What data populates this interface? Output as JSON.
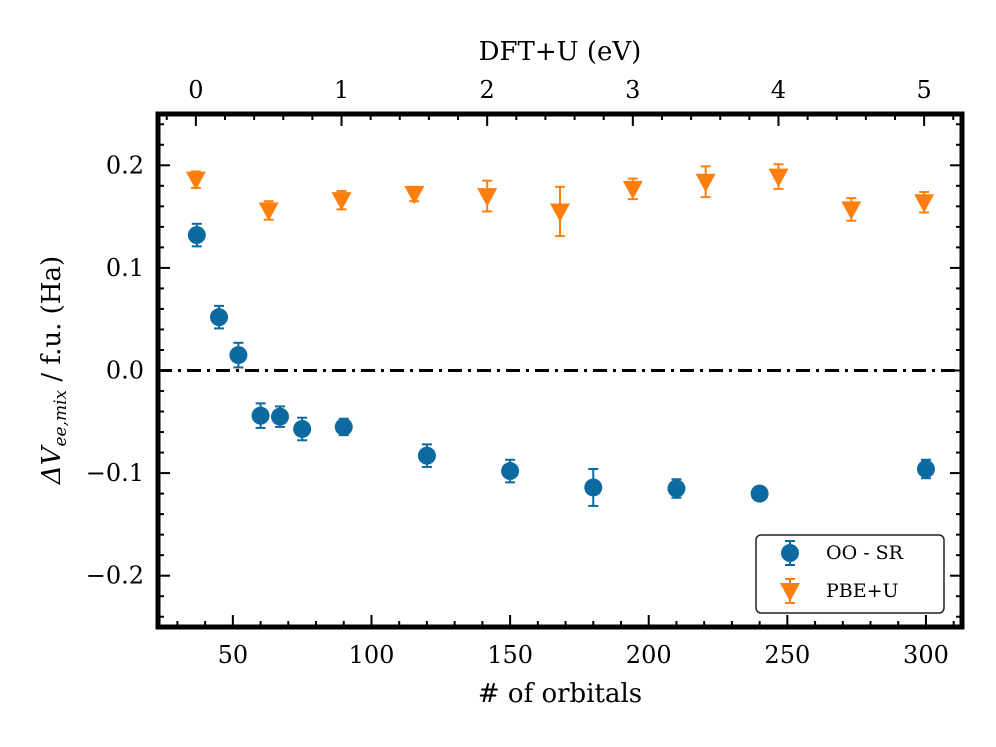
{
  "chart_data": {
    "type": "scatter",
    "ylabel_main": "ΔV",
    "ylabel_sub": "ee,mix",
    "ylabel_rest": " / f.u. (Ha)",
    "xlabel": "# of orbitals",
    "xlabel_top": "DFT+U (eV)",
    "xlim": [
      23,
      313
    ],
    "ylim": [
      -0.25,
      0.25
    ],
    "xlim_top": [
      -0.26,
      5.26
    ],
    "xticks": [
      50,
      100,
      150,
      200,
      250,
      300
    ],
    "xtick_labels": [
      "50",
      "100",
      "150",
      "200",
      "250",
      "300"
    ],
    "yticks": [
      -0.2,
      -0.1,
      0.0,
      0.1,
      0.2
    ],
    "ytick_labels": [
      "−0.2",
      "−0.1",
      "0.0",
      "0.1",
      "0.2"
    ],
    "xticks_top": [
      0,
      1,
      2,
      3,
      4,
      5
    ],
    "xtick_labels_top": [
      "0",
      "1",
      "2",
      "3",
      "4",
      "5"
    ],
    "reference_line": {
      "y": 0.0,
      "style": "dash-dot",
      "color": "#000000"
    },
    "legend_position": "bottom-right",
    "series": [
      {
        "name": "OO - SR",
        "marker": "circle",
        "color": "#0c6aa0",
        "axis": "bottom",
        "x": [
          37,
          45,
          52,
          60,
          67,
          75,
          90,
          120,
          150,
          180,
          210,
          240,
          300
        ],
        "y": [
          0.132,
          0.052,
          0.015,
          -0.044,
          -0.045,
          -0.057,
          -0.055,
          -0.083,
          -0.098,
          -0.114,
          -0.115,
          -0.12,
          -0.096
        ],
        "err": [
          0.011,
          0.011,
          0.012,
          0.012,
          0.01,
          0.011,
          0.008,
          0.011,
          0.011,
          0.018,
          0.009,
          0.006,
          0.009
        ]
      },
      {
        "name": "PBE+U",
        "marker": "triangle-down",
        "color": "#ff7f0e",
        "axis": "top",
        "x": [
          0,
          0.5,
          1.0,
          1.5,
          2.0,
          2.5,
          3.0,
          3.5,
          4.0,
          4.5,
          5.0
        ],
        "y": [
          0.186,
          0.156,
          0.166,
          0.172,
          0.17,
          0.155,
          0.177,
          0.184,
          0.189,
          0.157,
          0.164
        ],
        "err": [
          0.008,
          0.009,
          0.009,
          0.007,
          0.015,
          0.024,
          0.01,
          0.015,
          0.012,
          0.011,
          0.01
        ]
      }
    ]
  }
}
